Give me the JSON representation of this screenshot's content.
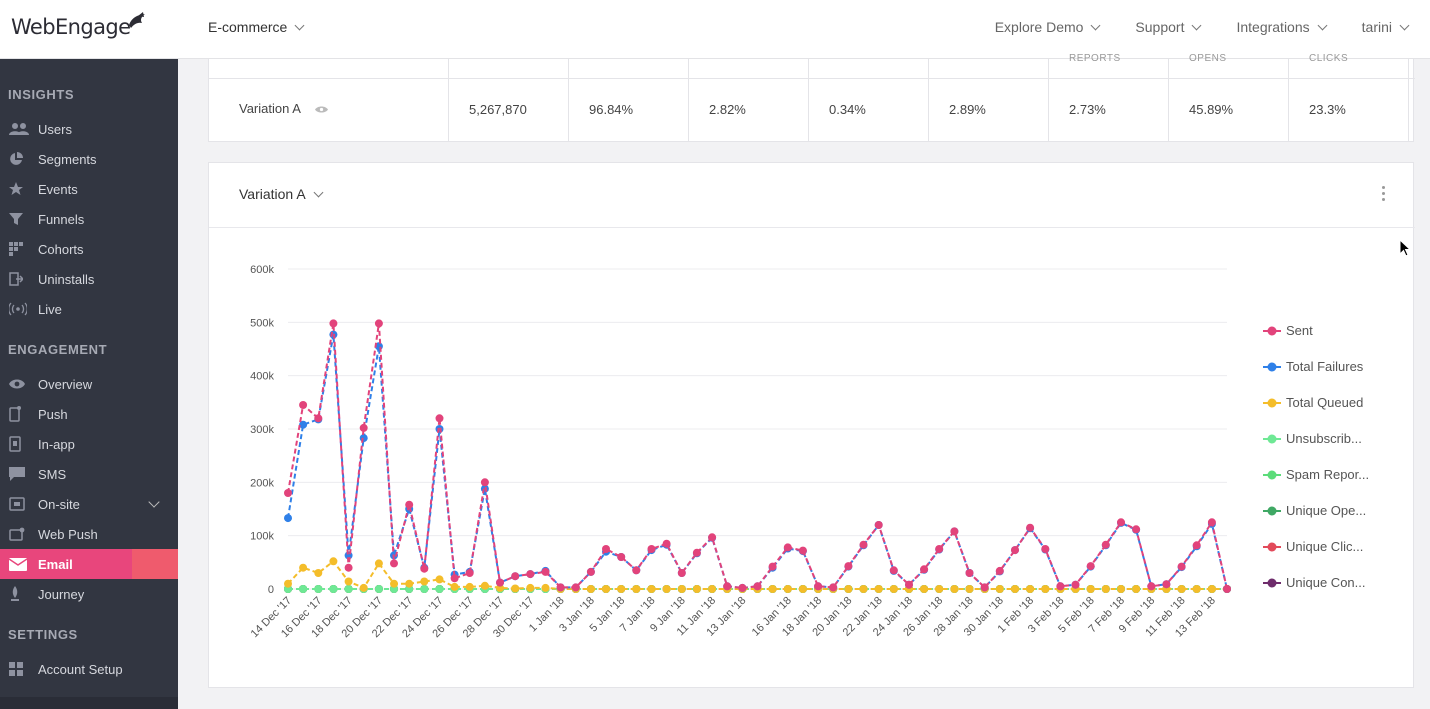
{
  "brand": {
    "logo_text": "WebEngage",
    "accent": "#e8467c"
  },
  "header": {
    "project": "E-commerce",
    "nav": [
      "Explore Demo",
      "Support",
      "Integrations",
      "tarini"
    ]
  },
  "sidebar": {
    "sections": [
      {
        "title": "INSIGHTS",
        "items": [
          {
            "label": "Users",
            "icon": "users-icon"
          },
          {
            "label": "Segments",
            "icon": "pie-icon"
          },
          {
            "label": "Events",
            "icon": "star-icon"
          },
          {
            "label": "Funnels",
            "icon": "funnel-icon"
          },
          {
            "label": "Cohorts",
            "icon": "grid-icon"
          },
          {
            "label": "Uninstalls",
            "icon": "uninstall-icon"
          },
          {
            "label": "Live",
            "icon": "live-icon"
          }
        ]
      },
      {
        "title": "ENGAGEMENT",
        "items": [
          {
            "label": "Overview",
            "icon": "eye-icon"
          },
          {
            "label": "Push",
            "icon": "push-icon"
          },
          {
            "label": "In-app",
            "icon": "inapp-icon"
          },
          {
            "label": "SMS",
            "icon": "sms-icon"
          },
          {
            "label": "On-site",
            "icon": "onsite-icon"
          },
          {
            "label": "Web Push",
            "icon": "webpush-icon"
          },
          {
            "label": "Email",
            "icon": "email-icon",
            "active": true
          },
          {
            "label": "Journey",
            "icon": "journey-icon"
          }
        ]
      },
      {
        "title": "SETTINGS",
        "items": [
          {
            "label": "Account Setup",
            "icon": "setup-icon"
          }
        ]
      }
    ]
  },
  "table": {
    "partial_headers": [
      "REPORTS",
      "OPENS",
      "CLICKS"
    ],
    "row": {
      "name": "Variation A",
      "values": [
        "5,267,870",
        "96.84%",
        "2.82%",
        "0.34%",
        "2.89%",
        "2.73%",
        "45.89%",
        "23.3%"
      ]
    }
  },
  "chart_card": {
    "variation": "Variation A"
  },
  "chart_data": {
    "type": "line",
    "x": [
      "14 Dec '17",
      "15 Dec '17",
      "16 Dec '17",
      "17 Dec '17",
      "18 Dec '17",
      "19 Dec '17",
      "20 Dec '17",
      "21 Dec '17",
      "22 Dec '17",
      "23 Dec '17",
      "24 Dec '17",
      "25 Dec '17",
      "26 Dec '17",
      "27 Dec '17",
      "28 Dec '17",
      "29 Dec '17",
      "30 Dec '17",
      "31 Dec '17",
      "1 Jan '18",
      "2 Jan '18",
      "3 Jan '18",
      "4 Jan '18",
      "5 Jan '18",
      "6 Jan '18",
      "7 Jan '18",
      "8 Jan '18",
      "9 Jan '18",
      "10 Jan '18",
      "11 Jan '18",
      "12 Jan '18",
      "13 Jan '18",
      "14 Jan '18",
      "15 Jan '18",
      "16 Jan '18",
      "17 Jan '18",
      "18 Jan '18",
      "19 Jan '18",
      "20 Jan '18",
      "21 Jan '18",
      "22 Jan '18",
      "23 Jan '18",
      "24 Jan '18",
      "25 Jan '18",
      "26 Jan '18",
      "27 Jan '18",
      "28 Jan '18",
      "29 Jan '18",
      "30 Jan '18",
      "31 Jan '18",
      "1 Feb '18",
      "2 Feb '18",
      "3 Feb '18",
      "4 Feb '18",
      "5 Feb '18",
      "6 Feb '18",
      "7 Feb '18",
      "8 Feb '18",
      "9 Feb '18",
      "10 Feb '18",
      "11 Feb '18",
      "12 Feb '18",
      "13 Feb '18",
      "14 Feb '18"
    ],
    "x_tick_labels": [
      "14 Dec '17",
      "16 Dec '17",
      "18 Dec '17",
      "20 Dec '17",
      "22 Dec '17",
      "24 Dec '17",
      "26 Dec '17",
      "28 Dec '17",
      "30 Dec '17",
      "1 Jan '18",
      "3 Jan '18",
      "5 Jan '18",
      "7 Jan '18",
      "9 Jan '18",
      "11 Jan '18",
      "13 Jan '18",
      "16 Jan '18",
      "18 Jan '18",
      "20 Jan '18",
      "22 Jan '18",
      "24 Jan '18",
      "26 Jan '18",
      "28 Jan '18",
      "30 Jan '18",
      "1 Feb '18",
      "3 Feb '18",
      "5 Feb '18",
      "7 Feb '18",
      "9 Feb '18",
      "11 Feb '18",
      "13 Feb '18"
    ],
    "y_ticks": [
      0,
      100000,
      200000,
      300000,
      400000,
      500000,
      600000
    ],
    "y_tick_labels": [
      "0",
      "100k",
      "200k",
      "300k",
      "400k",
      "500k",
      "600k"
    ],
    "ylim": [
      0,
      600000
    ],
    "grid": true,
    "legend": "right",
    "series": [
      {
        "name": "Sent",
        "color": "#e2437b",
        "values": [
          180000,
          345000,
          320000,
          498000,
          40000,
          302000,
          498000,
          48000,
          158000,
          38000,
          320000,
          20000,
          30000,
          200000,
          12000,
          24000,
          28000,
          32000,
          3000,
          3000,
          32000,
          75000,
          60000,
          35000,
          75000,
          85000,
          30000,
          68000,
          97000,
          5000,
          2000,
          5000,
          42000,
          78000,
          72000,
          5000,
          3000,
          43000,
          83000,
          120000,
          35000,
          8000,
          37000,
          75000,
          108000,
          30000,
          3000,
          34000,
          73000,
          115000,
          75000,
          5000,
          8000,
          43000,
          83000,
          125000,
          112000,
          5000,
          9000,
          42000,
          82000,
          125000,
          0
        ]
      },
      {
        "name": "Total Failures",
        "color": "#2f80e8",
        "values": [
          133000,
          308000,
          318000,
          477000,
          63000,
          283000,
          455000,
          63000,
          150000,
          40000,
          300000,
          27000,
          32000,
          188000,
          12000,
          24000,
          28000,
          34000,
          3000,
          3000,
          32000,
          70000,
          60000,
          35000,
          73000,
          83000,
          30000,
          67000,
          96000,
          5000,
          2000,
          5000,
          40000,
          76000,
          71000,
          5000,
          3000,
          42000,
          82000,
          120000,
          34000,
          8000,
          36000,
          74000,
          108000,
          30000,
          3000,
          33000,
          73000,
          114000,
          74000,
          5000,
          8000,
          42000,
          82000,
          124000,
          111000,
          5000,
          9000,
          41000,
          80000,
          122000,
          0
        ]
      },
      {
        "name": "Total Queued",
        "color": "#f4bd2a",
        "values": [
          10000,
          40000,
          30000,
          52000,
          14000,
          2000,
          48000,
          10000,
          10000,
          14000,
          18000,
          4000,
          4000,
          6000,
          2000,
          1000,
          2000,
          2000,
          0,
          0,
          0,
          0,
          0,
          0,
          0,
          0,
          0,
          0,
          0,
          0,
          0,
          0,
          0,
          0,
          0,
          0,
          0,
          0,
          0,
          0,
          0,
          0,
          0,
          0,
          0,
          0,
          0,
          0,
          0,
          0,
          0,
          0,
          0,
          0,
          0,
          0,
          0,
          0,
          0,
          0,
          0,
          0,
          0
        ]
      },
      {
        "name": "Unsubscrib...",
        "color": "#6fe895",
        "values": [
          0,
          0,
          0,
          0,
          0,
          0,
          0,
          0,
          0,
          0,
          0,
          0,
          0,
          0,
          0,
          0,
          0,
          0,
          0,
          0,
          0,
          0,
          0,
          0,
          0,
          0,
          0,
          0,
          0,
          0,
          0,
          0,
          0,
          0,
          0,
          0,
          0,
          0,
          0,
          0,
          0,
          0,
          0,
          0,
          0,
          0,
          0,
          0,
          0,
          0,
          0,
          0,
          0,
          0,
          0,
          0,
          0,
          0,
          0,
          0,
          0,
          0,
          0
        ]
      },
      {
        "name": "Spam Repor...",
        "color": "#5cdc7a",
        "values": [
          0,
          0,
          0,
          0,
          0,
          0,
          0,
          0,
          0,
          0,
          0,
          0,
          0,
          0,
          0,
          0,
          0,
          0,
          0,
          0,
          0,
          0,
          0,
          0,
          0,
          0,
          0,
          0,
          0,
          0,
          0,
          0,
          0,
          0,
          0,
          0,
          0,
          0,
          0,
          0,
          0,
          0,
          0,
          0,
          0,
          0,
          0,
          0,
          0,
          0,
          0,
          0,
          0,
          0,
          0,
          0,
          0,
          0,
          0,
          0,
          0,
          0,
          0
        ]
      },
      {
        "name": "Unique Ope...",
        "color": "#3fa864",
        "values": [
          0,
          0,
          0,
          0,
          0,
          0,
          0,
          0,
          0,
          0,
          0,
          0,
          0,
          0,
          0,
          0,
          0,
          0,
          0,
          0,
          0,
          0,
          0,
          0,
          0,
          0,
          0,
          0,
          0,
          0,
          0,
          0,
          0,
          0,
          0,
          0,
          0,
          0,
          0,
          0,
          0,
          0,
          0,
          0,
          0,
          0,
          0,
          0,
          0,
          0,
          0,
          0,
          0,
          0,
          0,
          0,
          0,
          0,
          0,
          0,
          0,
          0,
          0
        ]
      },
      {
        "name": "Unique Clic...",
        "color": "#e24a5a",
        "values": [
          0,
          0,
          0,
          0,
          0,
          0,
          0,
          0,
          0,
          0,
          0,
          0,
          0,
          0,
          0,
          0,
          0,
          0,
          0,
          0,
          0,
          0,
          0,
          0,
          0,
          0,
          0,
          0,
          0,
          0,
          0,
          0,
          0,
          0,
          0,
          0,
          0,
          0,
          0,
          0,
          0,
          0,
          0,
          0,
          0,
          0,
          0,
          0,
          0,
          0,
          0,
          0,
          0,
          0,
          0,
          0,
          0,
          0,
          0,
          0,
          0,
          0,
          0
        ]
      },
      {
        "name": "Unique Con...",
        "color": "#6e2c6b",
        "values": [
          0,
          0,
          0,
          0,
          0,
          0,
          0,
          0,
          0,
          0,
          0,
          0,
          0,
          0,
          0,
          0,
          0,
          0,
          0,
          0,
          0,
          0,
          0,
          0,
          0,
          0,
          0,
          0,
          0,
          0,
          0,
          0,
          0,
          0,
          0,
          0,
          0,
          0,
          0,
          0,
          0,
          0,
          0,
          0,
          0,
          0,
          0,
          0,
          0,
          0,
          0,
          0,
          0,
          0,
          0,
          0,
          0,
          0,
          0,
          0,
          0,
          0,
          0
        ]
      }
    ]
  }
}
